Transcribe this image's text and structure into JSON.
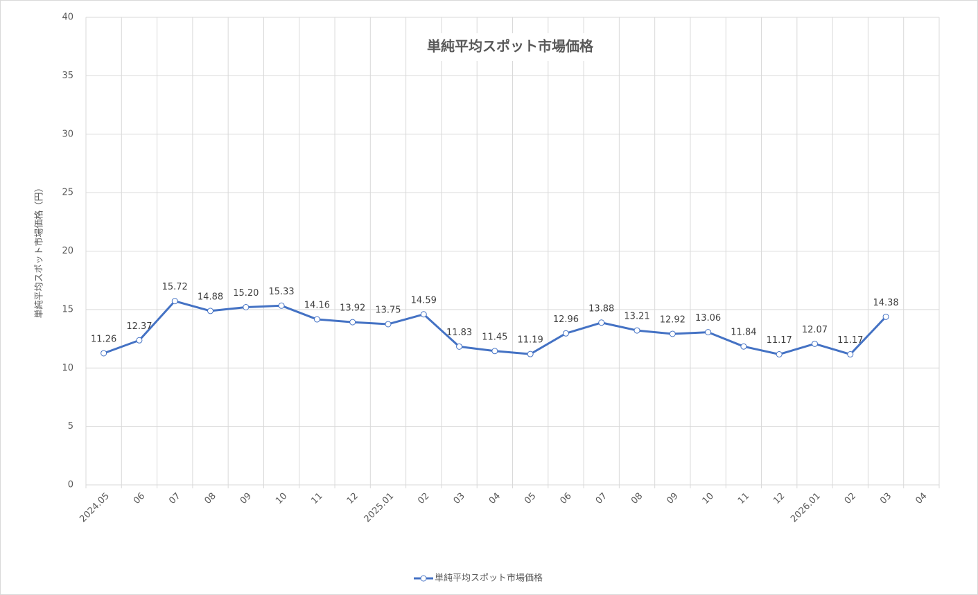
{
  "chart_data": {
    "type": "line",
    "title": "単純平均スポット市場価格",
    "y_label": "単純平均スポット市場価格（円）",
    "categories": [
      "2024.05",
      "06",
      "07",
      "08",
      "09",
      "10",
      "11",
      "12",
      "2025.01",
      "02",
      "03",
      "04",
      "05",
      "06",
      "07",
      "08",
      "09",
      "10",
      "11",
      "12",
      "2026.01",
      "02",
      "03",
      "04"
    ],
    "series": [
      {
        "name": "単純平均スポット市場価格",
        "color": "#4472c4",
        "values": [
          11.26,
          12.37,
          15.72,
          14.88,
          15.2,
          15.33,
          14.16,
          13.92,
          13.75,
          14.59,
          11.83,
          11.45,
          11.19,
          12.96,
          13.88,
          13.21,
          12.92,
          13.06,
          11.84,
          11.17,
          12.07,
          11.17,
          14.38,
          null
        ],
        "value_labels": [
          "11.26",
          "12.37",
          "15.72",
          "14.88",
          "15.20",
          "15.33",
          "14.16",
          "13.92",
          "13.75",
          "14.59",
          "11.83",
          "11.45",
          "11.19",
          "12.96",
          "13.88",
          "13.21",
          "12.92",
          "13.06",
          "11.84",
          "11.17",
          "12.07",
          "11.17",
          "14.38",
          null
        ]
      }
    ],
    "ylim": [
      0,
      40
    ],
    "yticks": [
      0,
      5,
      10,
      15,
      20,
      25,
      30,
      35,
      40
    ],
    "grid": true,
    "legend": "bottom"
  }
}
